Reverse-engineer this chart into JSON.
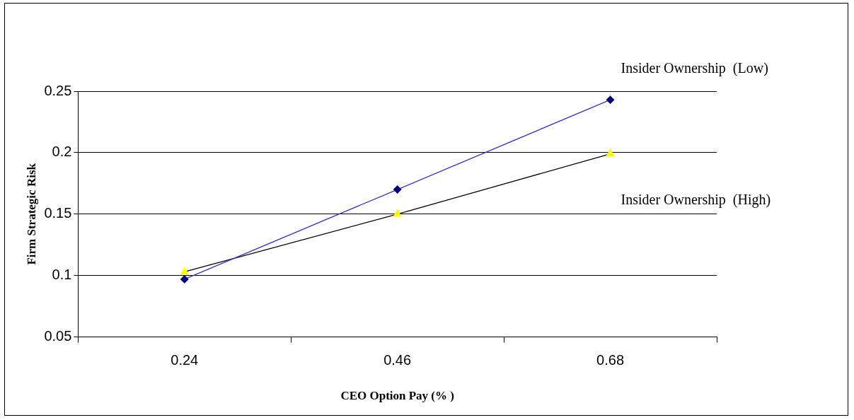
{
  "chart_data": {
    "type": "line",
    "xlabel": "CEO Option Pay (% )",
    "ylabel": "Firm Strategic Risk",
    "categories": [
      "0.24",
      "0.46",
      "0.68"
    ],
    "series": [
      {
        "name": "Insider Ownership  (Low)",
        "color": "#3333cc",
        "colors": [
          "#000080",
          "#000080",
          "#000080"
        ],
        "marker": "diamond",
        "values": [
          0.097,
          0.17,
          0.243
        ]
      },
      {
        "name": "Insider Ownership  (High)",
        "color": "#000000",
        "colors": [
          "#ffff00",
          "#ffff00",
          "#ffff00"
        ],
        "marker": "triangle",
        "values": [
          0.103,
          0.15,
          0.199
        ]
      }
    ],
    "ylim": [
      0.05,
      0.25
    ],
    "yticks": [
      0.05,
      0.1,
      0.15,
      0.2,
      0.25
    ],
    "grid": "y",
    "legend": false,
    "line_style": "solid"
  }
}
